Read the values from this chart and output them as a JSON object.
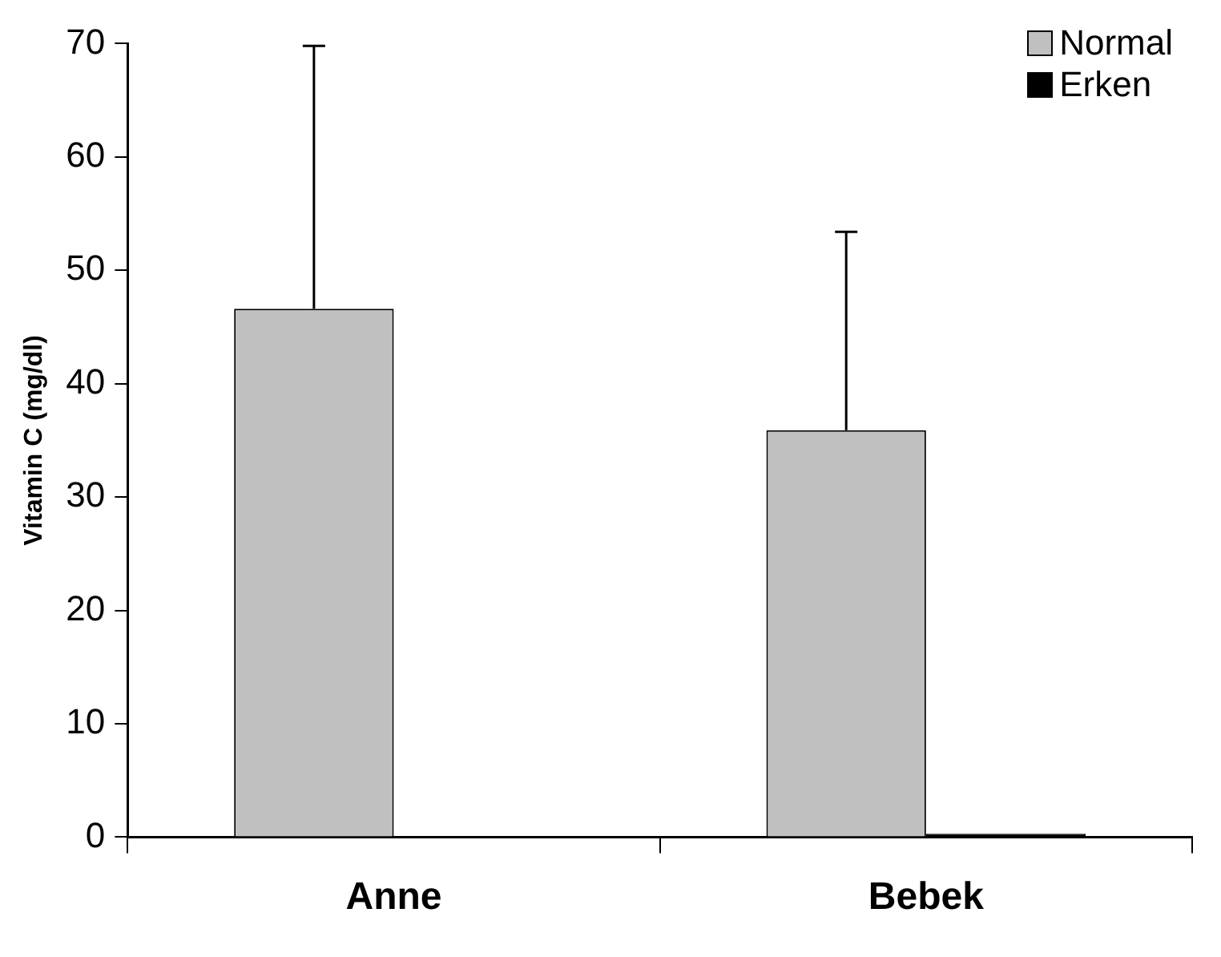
{
  "chart_data": {
    "type": "bar",
    "ylabel": "Vitamin C (mg/dl)",
    "categories": [
      "Anne",
      "Bebek"
    ],
    "series": [
      {
        "name": "Normal",
        "color": "#c0c0c0",
        "values": [
          46.6,
          35.9
        ],
        "errors": [
          [
            46.6,
            69.8
          ],
          [
            35.9,
            53.4
          ]
        ]
      },
      {
        "name": "Erken",
        "color": "#000000",
        "values": [
          0,
          0.3
        ]
      }
    ],
    "ylim": [
      0,
      70
    ],
    "yticks": [
      0,
      10,
      20,
      30,
      40,
      50,
      60,
      70
    ],
    "grid": false,
    "legend": "top right"
  }
}
